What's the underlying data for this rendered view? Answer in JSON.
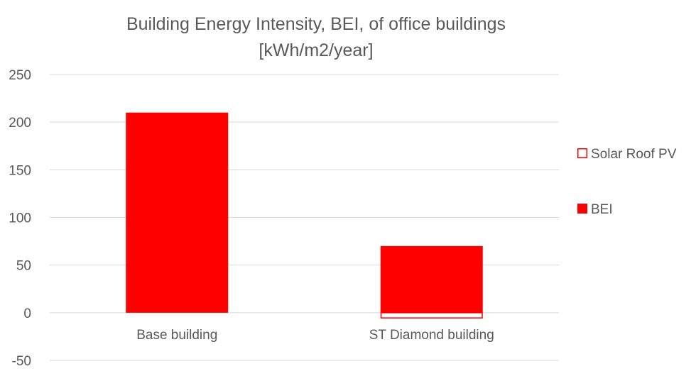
{
  "chart_data": {
    "type": "bar",
    "title": "Building Energy Intensity, BEI, of office buildings",
    "subtitle": "[kWh/m2/year]",
    "categories": [
      "Base building",
      "ST Diamond building"
    ],
    "series": [
      {
        "name": "BEI",
        "values": [
          210,
          70
        ],
        "color": "#ff0000",
        "style": "filled"
      },
      {
        "name": "Solar Roof PV",
        "values": [
          0,
          -6
        ],
        "color": "#ff0000",
        "style": "outline"
      }
    ],
    "stacked": true,
    "ylim": [
      -50,
      250
    ],
    "yticks": [
      -50,
      0,
      50,
      100,
      150,
      200,
      250
    ],
    "ytick_labels": [
      "-50",
      "0",
      "50",
      "100",
      "150",
      "200",
      "250"
    ],
    "grid": true,
    "legend_position": "right"
  }
}
